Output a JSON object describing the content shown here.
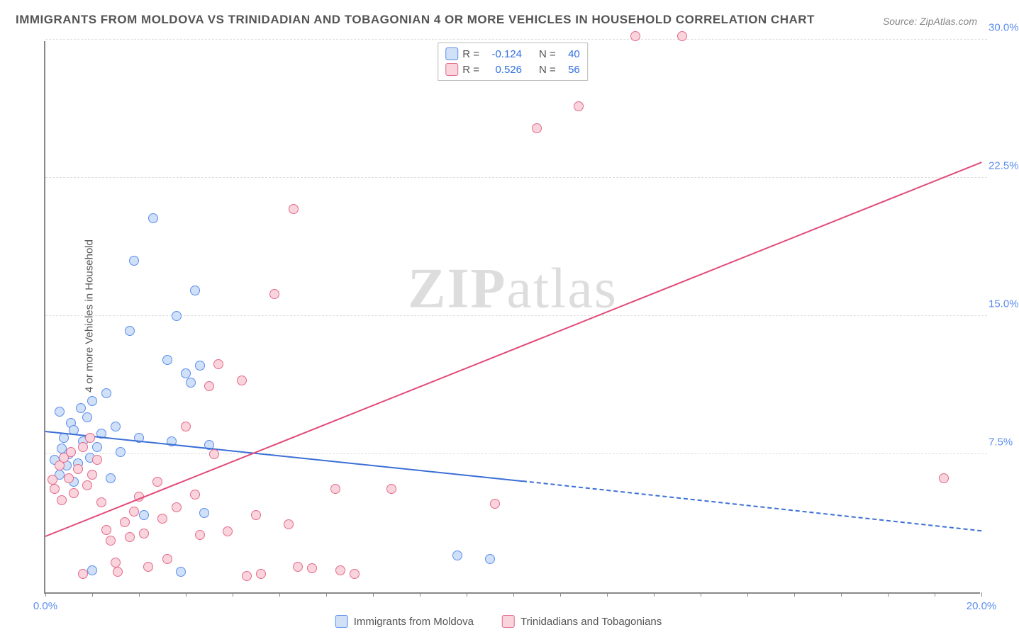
{
  "title": "IMMIGRANTS FROM MOLDOVA VS TRINIDADIAN AND TOBAGONIAN 4 OR MORE VEHICLES IN HOUSEHOLD CORRELATION CHART",
  "title_fontsize": 17,
  "source_label": "Source: ZipAtlas.com",
  "source_fontsize": 14,
  "ylabel": "4 or more Vehicles in Household",
  "ylabel_fontsize": 15,
  "watermark_a": "ZIP",
  "watermark_b": "atlas",
  "chart": {
    "type": "scatter-with-regression",
    "background_color": "#ffffff",
    "grid_color": "#dddddd",
    "axis_color": "#888888",
    "xlim": [
      0,
      20
    ],
    "ylim": [
      0,
      30
    ],
    "ytick_step": 7.5,
    "ytick_labels": [
      "7.5%",
      "15.0%",
      "22.5%",
      "30.0%"
    ],
    "xtick_labels": [
      "0.0%",
      "20.0%"
    ],
    "xtick_positions": [
      0,
      20
    ],
    "xtick_minor_step": 1,
    "tick_fontsize": 15,
    "tick_color": "#5b8def",
    "marker_radius": 7,
    "marker_border_width": 1.5,
    "series": [
      {
        "id": "moldova",
        "label": "Immigrants from Moldova",
        "fill_color": "#cfe0f7",
        "border_color": "#5b8def",
        "line_color": "#3b6fd6",
        "R": "-0.124",
        "N": "40",
        "trend": {
          "x1": 0,
          "y1": 8.7,
          "x_solid_end": 10.2,
          "y_solid_end": 6.0,
          "x2": 20,
          "y2": 3.3
        },
        "points": [
          {
            "x": 0.2,
            "y": 7.2
          },
          {
            "x": 0.3,
            "y": 6.4
          },
          {
            "x": 0.35,
            "y": 7.8
          },
          {
            "x": 0.4,
            "y": 8.4
          },
          {
            "x": 0.45,
            "y": 6.9
          },
          {
            "x": 0.5,
            "y": 7.5
          },
          {
            "x": 0.55,
            "y": 9.2
          },
          {
            "x": 0.6,
            "y": 8.8
          },
          {
            "x": 0.7,
            "y": 7.0
          },
          {
            "x": 0.75,
            "y": 10.0
          },
          {
            "x": 0.8,
            "y": 8.2
          },
          {
            "x": 0.9,
            "y": 9.5
          },
          {
            "x": 0.95,
            "y": 7.3
          },
          {
            "x": 1.0,
            "y": 10.4
          },
          {
            "x": 1.1,
            "y": 7.9
          },
          {
            "x": 1.2,
            "y": 8.6
          },
          {
            "x": 1.3,
            "y": 10.8
          },
          {
            "x": 1.4,
            "y": 6.2
          },
          {
            "x": 1.5,
            "y": 9.0
          },
          {
            "x": 1.6,
            "y": 7.6
          },
          {
            "x": 1.8,
            "y": 14.2
          },
          {
            "x": 1.9,
            "y": 18.0
          },
          {
            "x": 2.0,
            "y": 8.4
          },
          {
            "x": 2.1,
            "y": 4.2
          },
          {
            "x": 2.3,
            "y": 20.3
          },
          {
            "x": 2.6,
            "y": 12.6
          },
          {
            "x": 2.7,
            "y": 8.2
          },
          {
            "x": 2.8,
            "y": 15.0
          },
          {
            "x": 3.0,
            "y": 11.9
          },
          {
            "x": 3.1,
            "y": 11.4
          },
          {
            "x": 3.2,
            "y": 16.4
          },
          {
            "x": 3.3,
            "y": 12.3
          },
          {
            "x": 3.4,
            "y": 4.3
          },
          {
            "x": 3.5,
            "y": 8.0
          },
          {
            "x": 1.0,
            "y": 1.2
          },
          {
            "x": 2.9,
            "y": 1.1
          },
          {
            "x": 8.8,
            "y": 2.0
          },
          {
            "x": 9.5,
            "y": 1.8
          },
          {
            "x": 0.3,
            "y": 9.8
          },
          {
            "x": 0.6,
            "y": 6.0
          }
        ]
      },
      {
        "id": "trinidad",
        "label": "Trinidadians and Tobagonians",
        "fill_color": "#f9d4dd",
        "border_color": "#e36a8b",
        "line_color": "#e14b78",
        "R": "0.526",
        "N": "56",
        "trend": {
          "x1": 0,
          "y1": 3.0,
          "x_solid_end": 20,
          "y_solid_end": 23.3,
          "x2": 20,
          "y2": 23.3
        },
        "points": [
          {
            "x": 0.15,
            "y": 6.1
          },
          {
            "x": 0.2,
            "y": 5.6
          },
          {
            "x": 0.3,
            "y": 6.9
          },
          {
            "x": 0.35,
            "y": 5.0
          },
          {
            "x": 0.4,
            "y": 7.3
          },
          {
            "x": 0.5,
            "y": 6.2
          },
          {
            "x": 0.55,
            "y": 7.6
          },
          {
            "x": 0.6,
            "y": 5.4
          },
          {
            "x": 0.7,
            "y": 6.7
          },
          {
            "x": 0.8,
            "y": 7.9
          },
          {
            "x": 0.9,
            "y": 5.8
          },
          {
            "x": 0.95,
            "y": 8.4
          },
          {
            "x": 1.0,
            "y": 6.4
          },
          {
            "x": 1.1,
            "y": 7.2
          },
          {
            "x": 1.2,
            "y": 4.9
          },
          {
            "x": 1.3,
            "y": 3.4
          },
          {
            "x": 1.4,
            "y": 2.8
          },
          {
            "x": 1.5,
            "y": 1.6
          },
          {
            "x": 1.55,
            "y": 1.1
          },
          {
            "x": 1.7,
            "y": 3.8
          },
          {
            "x": 1.8,
            "y": 3.0
          },
          {
            "x": 1.9,
            "y": 4.4
          },
          {
            "x": 2.0,
            "y": 5.2
          },
          {
            "x": 2.1,
            "y": 3.2
          },
          {
            "x": 2.2,
            "y": 1.4
          },
          {
            "x": 2.4,
            "y": 6.0
          },
          {
            "x": 2.5,
            "y": 4.0
          },
          {
            "x": 2.6,
            "y": 1.8
          },
          {
            "x": 2.8,
            "y": 4.6
          },
          {
            "x": 3.0,
            "y": 9.0
          },
          {
            "x": 3.2,
            "y": 5.3
          },
          {
            "x": 3.3,
            "y": 3.1
          },
          {
            "x": 3.5,
            "y": 11.2
          },
          {
            "x": 3.6,
            "y": 7.5
          },
          {
            "x": 3.7,
            "y": 12.4
          },
          {
            "x": 3.9,
            "y": 3.3
          },
          {
            "x": 4.2,
            "y": 11.5
          },
          {
            "x": 4.3,
            "y": 0.9
          },
          {
            "x": 4.5,
            "y": 4.2
          },
          {
            "x": 4.6,
            "y": 1.0
          },
          {
            "x": 5.2,
            "y": 3.7
          },
          {
            "x": 5.3,
            "y": 20.8
          },
          {
            "x": 5.4,
            "y": 1.4
          },
          {
            "x": 4.9,
            "y": 16.2
          },
          {
            "x": 5.7,
            "y": 1.3
          },
          {
            "x": 6.2,
            "y": 5.6
          },
          {
            "x": 6.3,
            "y": 1.2
          },
          {
            "x": 6.6,
            "y": 1.0
          },
          {
            "x": 7.4,
            "y": 5.6
          },
          {
            "x": 9.6,
            "y": 4.8
          },
          {
            "x": 10.5,
            "y": 25.2
          },
          {
            "x": 11.4,
            "y": 26.4
          },
          {
            "x": 12.6,
            "y": 30.2
          },
          {
            "x": 13.6,
            "y": 30.2
          },
          {
            "x": 19.2,
            "y": 6.2
          },
          {
            "x": 0.8,
            "y": 1.0
          }
        ]
      }
    ],
    "statbox": {
      "R_label": "R  =",
      "N_label": "N  =",
      "value_color": "#2f6fe0"
    },
    "bottom_legend_fontsize": 15
  }
}
